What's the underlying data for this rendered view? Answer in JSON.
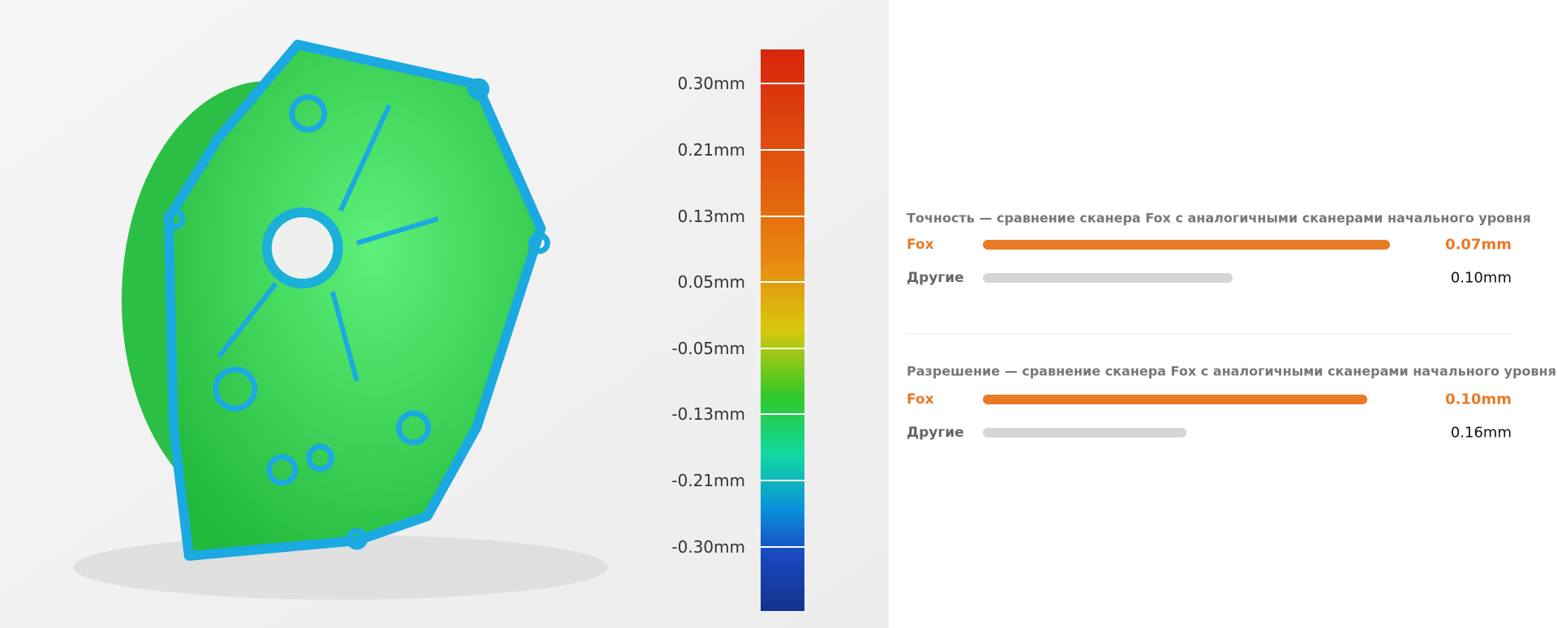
{
  "color_scale": {
    "labels": [
      "0.30mm",
      "0.21mm",
      "0.13mm",
      "0.05mm",
      "-0.05mm",
      "-0.13mm",
      "-0.21mm",
      "-0.30mm"
    ]
  },
  "comparisons": [
    {
      "title": "Точность — сравнение сканера Fox с аналогичными сканерами начального уровня",
      "rows": [
        {
          "name": "Fox",
          "value": "0.07mm"
        },
        {
          "name": "Другие",
          "value": "0.10mm"
        }
      ]
    },
    {
      "title": "Разрешение — сравнение сканера Fox с аналогичными сканерами начального уровня",
      "rows": [
        {
          "name": "Fox",
          "value": "0.10mm"
        },
        {
          "name": "Другие",
          "value": "0.16mm"
        }
      ]
    }
  ]
}
